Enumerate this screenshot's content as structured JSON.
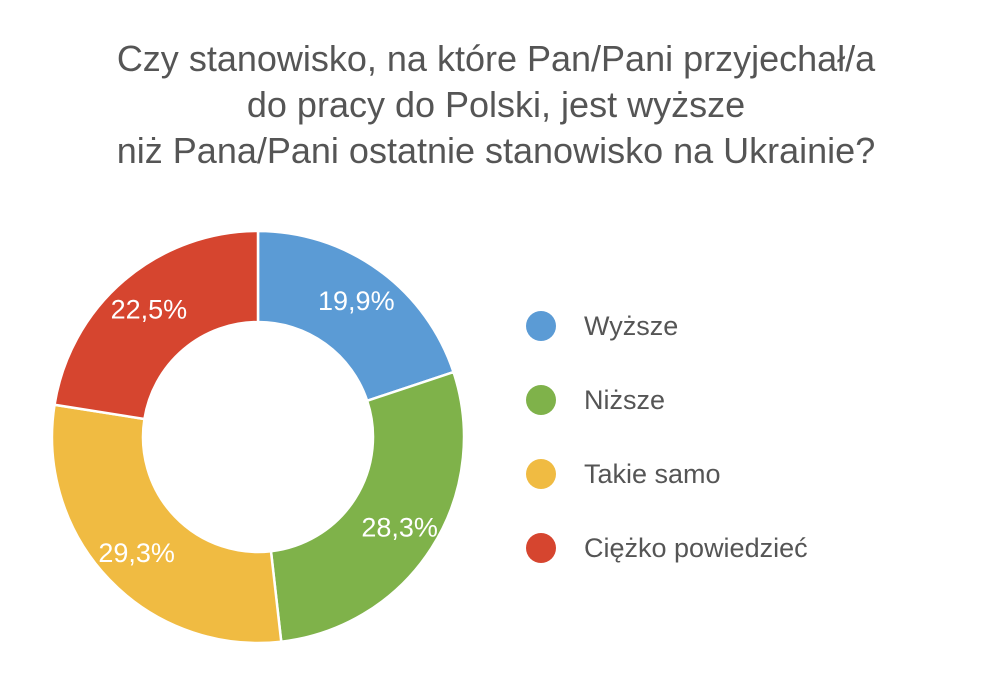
{
  "chart_data": {
    "type": "pie",
    "donut": true,
    "title_lines": [
      "Czy stanowisko, na które Pan/Pani przyjechał/a",
      "do pracy do Polski, jest wyższe",
      "niż Pana/Pani ostatnie stanowisko na Ukrainie?"
    ],
    "legend_position": "right",
    "slices": [
      {
        "name": "Wyższe",
        "value": 19.9,
        "label": "19,9%",
        "color": "#5b9bd5"
      },
      {
        "name": "Niższe",
        "value": 28.3,
        "label": "28,3%",
        "color": "#7fb24a"
      },
      {
        "name": "Takie samo",
        "value": 29.3,
        "label": "29,3%",
        "color": "#f0bb42"
      },
      {
        "name": "Ciężko powiedzieć",
        "value": 22.5,
        "label": "22,5%",
        "color": "#d6452f"
      }
    ]
  }
}
